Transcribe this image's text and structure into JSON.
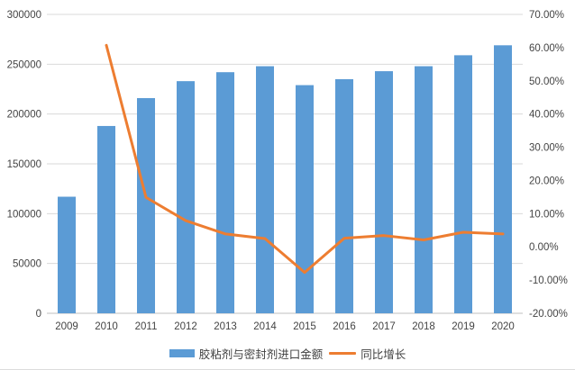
{
  "chart_data": {
    "type": "combo-bar-line",
    "title": "",
    "categories": [
      "2009",
      "2010",
      "2011",
      "2012",
      "2013",
      "2014",
      "2015",
      "2016",
      "2017",
      "2018",
      "2019",
      "2020"
    ],
    "series": [
      {
        "name": "胶粘剂与密封剂进口金额",
        "type": "bar",
        "axis": "left",
        "color": "#5b9bd5",
        "values": [
          117000,
          188000,
          216000,
          233000,
          242000,
          248000,
          229000,
          235000,
          243000,
          248000,
          259000,
          269000
        ]
      },
      {
        "name": "同比增长",
        "type": "line",
        "axis": "right",
        "color": "#ed7d31",
        "values": [
          null,
          60.7,
          14.9,
          7.9,
          3.9,
          2.5,
          -7.7,
          2.6,
          3.4,
          2.1,
          4.4,
          3.9
        ]
      }
    ],
    "left_axis": {
      "min": 0,
      "max": 300000,
      "step": 50000,
      "tick_labels": [
        "0",
        "50000",
        "100000",
        "150000",
        "200000",
        "250000",
        "300000"
      ]
    },
    "right_axis": {
      "min": -20,
      "max": 70,
      "step": 10,
      "tick_labels": [
        "-20.00%",
        "-10.00%",
        "0.00%",
        "10.00%",
        "20.00%",
        "30.00%",
        "40.00%",
        "50.00%",
        "60.00%",
        "70.00%"
      ]
    },
    "grid": true,
    "legend_position": "bottom",
    "styles": {
      "grid_color": "#d9d9d9",
      "axis_line_color": "#bfbfbf",
      "text_color": "#444444",
      "background": "#ffffff"
    }
  }
}
